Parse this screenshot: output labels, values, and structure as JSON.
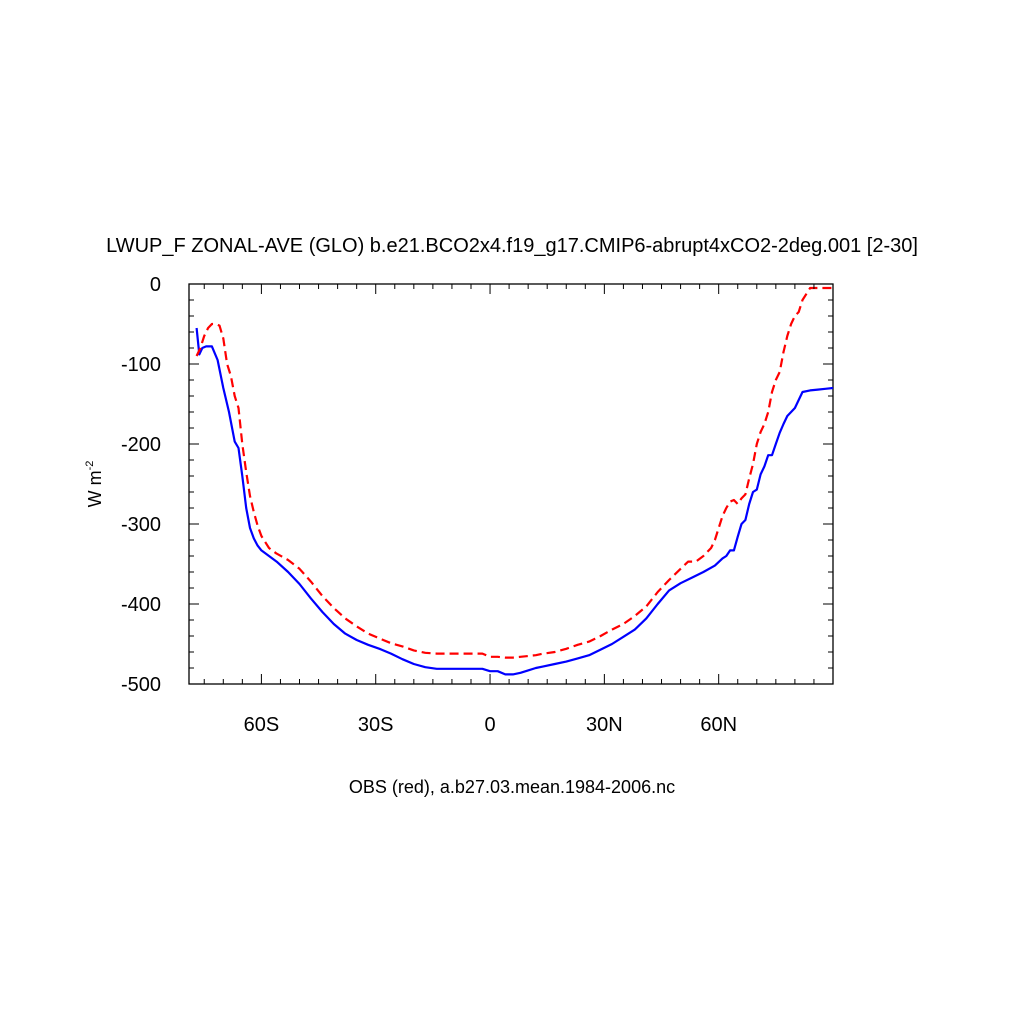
{
  "chart_data": {
    "type": "line",
    "title": "LWUP_F ZONAL-AVE (GLO) b.e21.BCO2x4.f19_g17.CMIP6-abrupt4xCO2-2deg.001 [2-30]",
    "xlabel": "OBS (red), a.b27.03.mean.1984-2006.nc",
    "ylabel": "W m",
    "ylabel_sup": "-2",
    "xlim": [
      -79,
      90
    ],
    "ylim": [
      -500,
      0
    ],
    "xticks": [
      {
        "value": -60,
        "label": "60S"
      },
      {
        "value": -30,
        "label": "30S"
      },
      {
        "value": 0,
        "label": "0"
      },
      {
        "value": 30,
        "label": "30N"
      },
      {
        "value": 60,
        "label": "60N"
      }
    ],
    "yticks": [
      {
        "value": 0,
        "label": "0"
      },
      {
        "value": -100,
        "label": "-100"
      },
      {
        "value": -200,
        "label": "-200"
      },
      {
        "value": -300,
        "label": "-300"
      },
      {
        "value": -400,
        "label": "-400"
      },
      {
        "value": -500,
        "label": "-500"
      }
    ],
    "grid": false,
    "series": [
      {
        "color": "#0000ff",
        "dash": "solid",
        "x": [
          -77,
          -76.3,
          -75.5,
          -74.5,
          -73,
          -71.5,
          -70,
          -68.5,
          -67,
          -66,
          -65,
          -64,
          -63,
          -62,
          -61,
          -60,
          -58,
          -56,
          -53,
          -50,
          -47,
          -44,
          -41,
          -38,
          -35,
          -32,
          -29,
          -26,
          -23,
          -20,
          -17,
          -14,
          -11,
          -8,
          -5,
          -2,
          0,
          2,
          4,
          6,
          8,
          10,
          12,
          14,
          17,
          20,
          23,
          26,
          29,
          32,
          35,
          38,
          41,
          44,
          47,
          50,
          53,
          56,
          59,
          61,
          62,
          63,
          64,
          65,
          66,
          67,
          68,
          69,
          70,
          71,
          72,
          73,
          74,
          75,
          76,
          77,
          78,
          80,
          82,
          84,
          86,
          88,
          90
        ],
        "y": [
          -55,
          -88,
          -80,
          -78,
          -78,
          -95,
          -130,
          -160,
          -197,
          -205,
          -240,
          -280,
          -305,
          -318,
          -327,
          -333,
          -340,
          -347,
          -360,
          -375,
          -393,
          -410,
          -425,
          -437,
          -445,
          -451,
          -456,
          -462,
          -469,
          -475,
          -479,
          -481,
          -481,
          -481,
          -481,
          -481,
          -484,
          -484,
          -488,
          -488,
          -486,
          -483,
          -480,
          -478,
          -475,
          -472,
          -468,
          -464,
          -457,
          -450,
          -441,
          -432,
          -418,
          -400,
          -383,
          -374,
          -367,
          -360,
          -352,
          -343,
          -340,
          -333,
          -333,
          -316,
          -300,
          -295,
          -275,
          -260,
          -257,
          -238,
          -228,
          -214,
          -214,
          -200,
          -186,
          -175,
          -165,
          -155,
          -135,
          -133,
          -132,
          -131,
          -130
        ]
      },
      {
        "color": "#ff0000",
        "dash": "dashed",
        "x": [
          -77,
          -76,
          -75,
          -74,
          -73,
          -72,
          -71,
          -70,
          -69,
          -68,
          -67,
          -66,
          -65,
          -64,
          -63,
          -62,
          -61,
          -60,
          -58,
          -56,
          -53,
          -50,
          -47,
          -44,
          -41,
          -38,
          -35,
          -32,
          -29,
          -26,
          -23,
          -20,
          -17,
          -14,
          -11,
          -8,
          -5,
          -2,
          0,
          2,
          4,
          6,
          8,
          10,
          12,
          14,
          17,
          20,
          23,
          26,
          29,
          32,
          35,
          38,
          41,
          44,
          47,
          50,
          52,
          54,
          56,
          58,
          59,
          60,
          61,
          62,
          63,
          64,
          65,
          66,
          67,
          68,
          69,
          70,
          71,
          72,
          73,
          74,
          75,
          76,
          77,
          78,
          79,
          80,
          81,
          82,
          84,
          86,
          88,
          90
        ],
        "y": [
          -90,
          -80,
          -65,
          -55,
          -50,
          -50,
          -52,
          -68,
          -100,
          -115,
          -140,
          -155,
          -200,
          -235,
          -265,
          -285,
          -302,
          -315,
          -330,
          -337,
          -345,
          -356,
          -372,
          -390,
          -405,
          -418,
          -428,
          -437,
          -443,
          -449,
          -453,
          -458,
          -461,
          -462,
          -462,
          -462,
          -462,
          -462,
          -466,
          -466,
          -467,
          -467,
          -466,
          -465,
          -464,
          -462,
          -460,
          -456,
          -451,
          -447,
          -440,
          -432,
          -425,
          -415,
          -403,
          -385,
          -370,
          -356,
          -347,
          -347,
          -340,
          -330,
          -320,
          -305,
          -290,
          -280,
          -272,
          -270,
          -275,
          -268,
          -263,
          -243,
          -225,
          -200,
          -185,
          -175,
          -160,
          -135,
          -120,
          -110,
          -85,
          -65,
          -50,
          -40,
          -35,
          -20,
          -5,
          -5,
          -5,
          -5
        ]
      }
    ]
  }
}
